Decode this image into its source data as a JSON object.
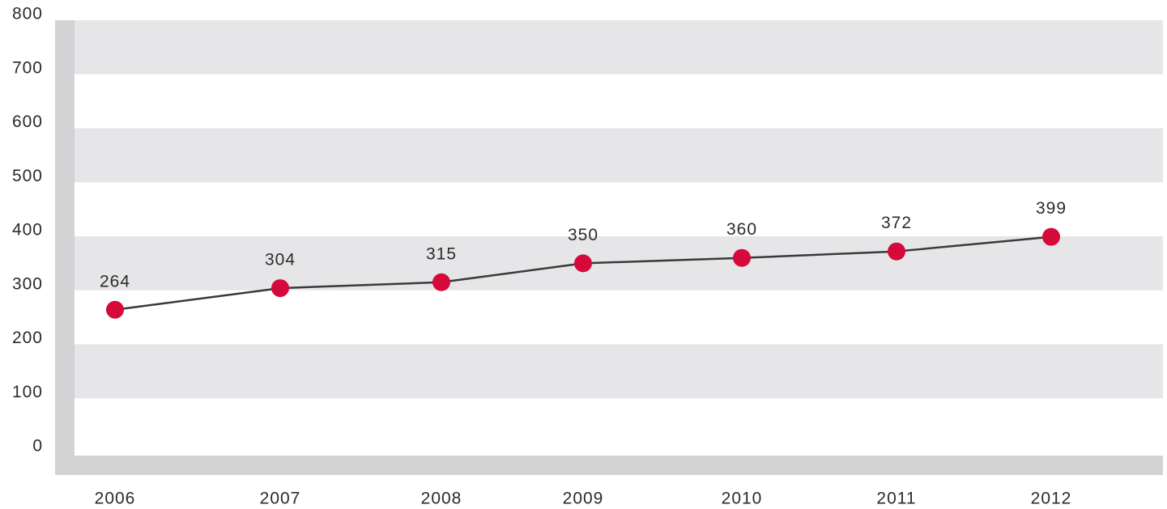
{
  "chart_data": {
    "type": "line",
    "title": "",
    "xlabel": "",
    "ylabel": "",
    "ylim": [
      0,
      800
    ],
    "y_ticks": [
      "0",
      "100",
      "200",
      "300",
      "400",
      "500",
      "600",
      "700",
      "800"
    ],
    "categories": [
      "2006",
      "2007",
      "2008",
      "2009",
      "2010",
      "2011",
      "2012"
    ],
    "series": [
      {
        "values": [
          264,
          304,
          315,
          350,
          360,
          372,
          399
        ],
        "labels": [
          "264",
          "304",
          "315",
          "350",
          "360",
          "372",
          "399"
        ]
      }
    ],
    "grid": "alternating horizontal bands",
    "legend": "none",
    "colors": {
      "band": "#e6e6e8",
      "axis_frame": "#d3d3d5",
      "line": "#3a3a3a",
      "marker": "#d6093b"
    }
  }
}
